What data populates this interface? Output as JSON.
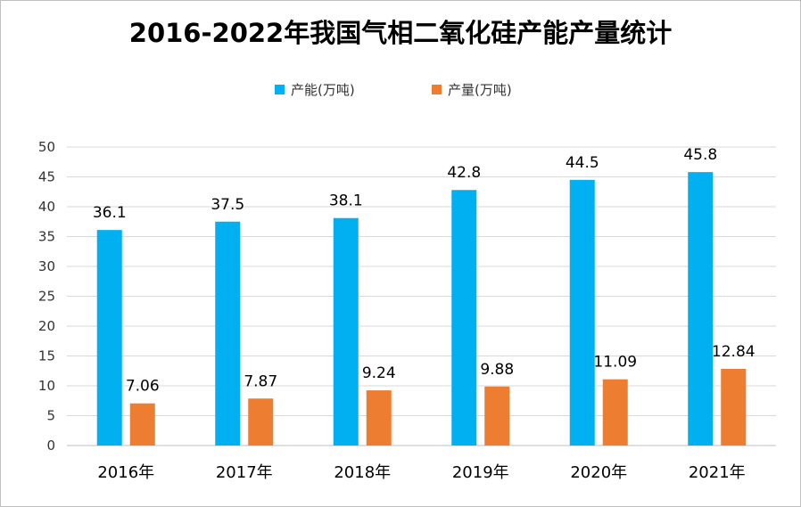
{
  "chart_data": {
    "type": "bar",
    "title": "2016-2022年我国气相二氧化硅产能产量统计",
    "xlabel": "",
    "ylabel": "",
    "ylim": [
      0,
      50
    ],
    "yticks": [
      0,
      5,
      10,
      15,
      20,
      25,
      30,
      35,
      40,
      45,
      50
    ],
    "grid": true,
    "legend_position": "top",
    "categories": [
      "2016年",
      "2017年",
      "2018年",
      "2019年",
      "2020年",
      "2021年"
    ],
    "series": [
      {
        "name": "产能(万吨)",
        "color": "#00b0f0",
        "values": [
          36.1,
          37.5,
          38.1,
          42.8,
          44.5,
          45.8
        ],
        "labels": [
          "36.1",
          "37.5",
          "38.1",
          "42.8",
          "44.5",
          "45.8"
        ]
      },
      {
        "name": "产量(万吨)",
        "color": "#ed7d31",
        "values": [
          7.06,
          7.87,
          9.24,
          9.88,
          11.09,
          12.84
        ],
        "labels": [
          "7.06",
          "7.87",
          "9.24",
          "9.88",
          "11.09",
          "12.84"
        ]
      }
    ]
  }
}
